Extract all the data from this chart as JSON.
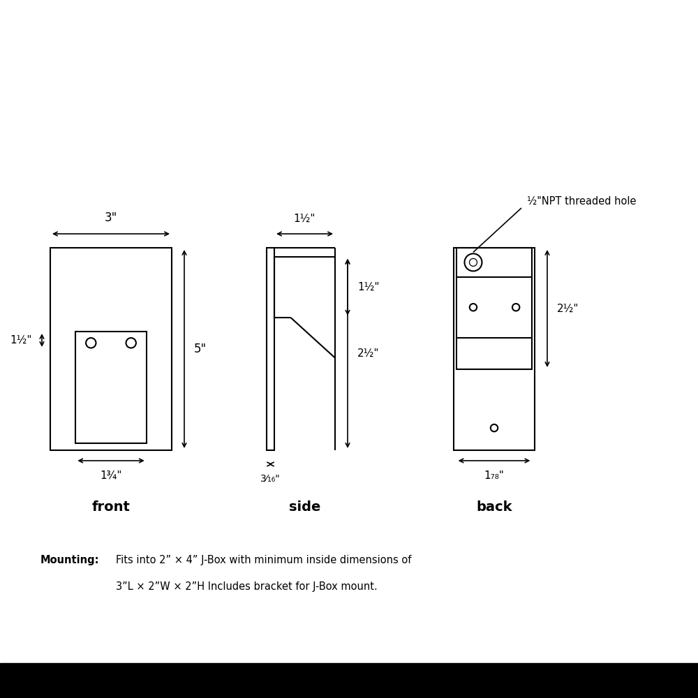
{
  "bg_color": "#ffffff",
  "lc": "#000000",
  "lw": 1.5,
  "front_label": "front",
  "side_label": "side",
  "back_label": "back",
  "dim_3in": "3\"",
  "dim_5in": "5\"",
  "dim_1h_front": "1½\"",
  "dim_1h_side_top": "1½\"",
  "dim_1h_side_vert": "1½\"",
  "dim_2h_side": "2½\"",
  "dim_2h_back": "2½\"",
  "dim_3_16": "3⁄₁₆\"",
  "dim_1_34": "1¾\"",
  "dim_1_78": "1₇₈\"",
  "dim_npt": "½\"NPT threaded hole",
  "mounting_bold": "Mounting:",
  "mounting_line1": "Fits into 2” × 4” J-Box with minimum inside dimensions of",
  "mounting_line2": "3”L × 2”W × 2”H Includes bracket for J-Box mount.",
  "label_fontsize": 14,
  "dim_fontsize": 12,
  "dim_fontsize_sm": 11,
  "mount_fontsize": 10.5
}
